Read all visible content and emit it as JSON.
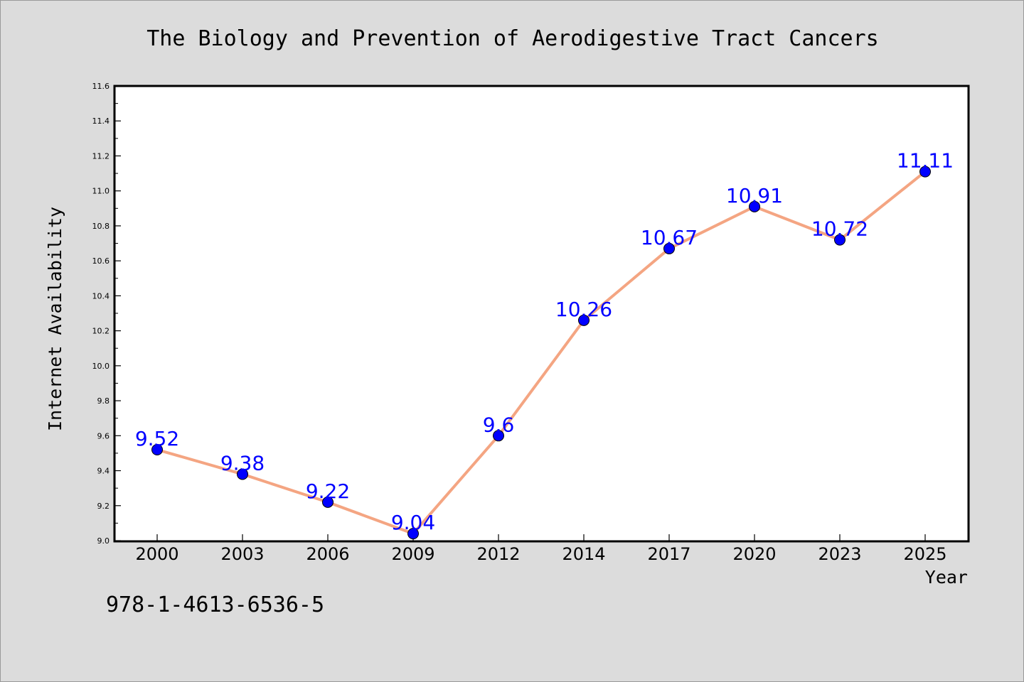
{
  "chart_data": {
    "type": "line",
    "title": "The Biology and Prevention of Aerodigestive Tract Cancers",
    "xlabel": "Year",
    "ylabel": "Internet Availability",
    "categories": [
      "2000",
      "2003",
      "2006",
      "2009",
      "2012",
      "2014",
      "2017",
      "2020",
      "2023",
      "2025"
    ],
    "series": [
      {
        "values": [
          9.52,
          9.38,
          9.22,
          9.04,
          9.6,
          10.26,
          10.67,
          10.91,
          10.72,
          11.11
        ],
        "labels": [
          "9.52",
          "9.38",
          "9.22",
          "9.04",
          "9.6",
          "10.26",
          "10.67",
          "10.91",
          "10.72",
          "11.11"
        ],
        "line_color": "#f4a582",
        "marker_color": "#0000ff",
        "label_color": "#0000ff"
      }
    ],
    "ylim": [
      9.0,
      11.6
    ],
    "yticks": [
      "9.0",
      "9.2",
      "9.4",
      "9.6",
      "9.8",
      "10.0",
      "10.2",
      "10.4",
      "10.6",
      "10.8",
      "11.0",
      "11.2",
      "11.4",
      "11.6"
    ],
    "grid": false,
    "legend": "none"
  },
  "footnote": "978-1-4613-6536-5",
  "colors": {
    "background": "#dcdcdc",
    "plot_background": "#ffffff"
  }
}
